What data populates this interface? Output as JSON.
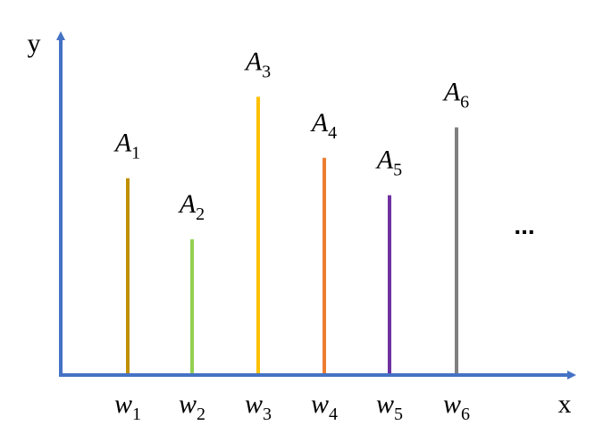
{
  "chart_data": {
    "type": "stem",
    "y_axis_label": "y",
    "x_axis_label": "x",
    "categories": [
      {
        "symbol": "w",
        "subscript": "1"
      },
      {
        "symbol": "w",
        "subscript": "2"
      },
      {
        "symbol": "w",
        "subscript": "3"
      },
      {
        "symbol": "w",
        "subscript": "4"
      },
      {
        "symbol": "w",
        "subscript": "5"
      },
      {
        "symbol": "w",
        "subscript": "6"
      }
    ],
    "value_labels": [
      {
        "symbol": "A",
        "subscript": "1"
      },
      {
        "symbol": "A",
        "subscript": "2"
      },
      {
        "symbol": "A",
        "subscript": "3"
      },
      {
        "symbol": "A",
        "subscript": "4"
      },
      {
        "symbol": "A",
        "subscript": "5"
      },
      {
        "symbol": "A",
        "subscript": "6"
      }
    ],
    "values": [
      58,
      40,
      82,
      64,
      53,
      73
    ],
    "colors": [
      "#bf9000",
      "#92d050",
      "#ffc000",
      "#ed7d31",
      "#7030a0",
      "#7f7f7f"
    ],
    "axis_color": "#4472c4",
    "ylim": [
      0,
      100
    ],
    "continuation": "..."
  }
}
